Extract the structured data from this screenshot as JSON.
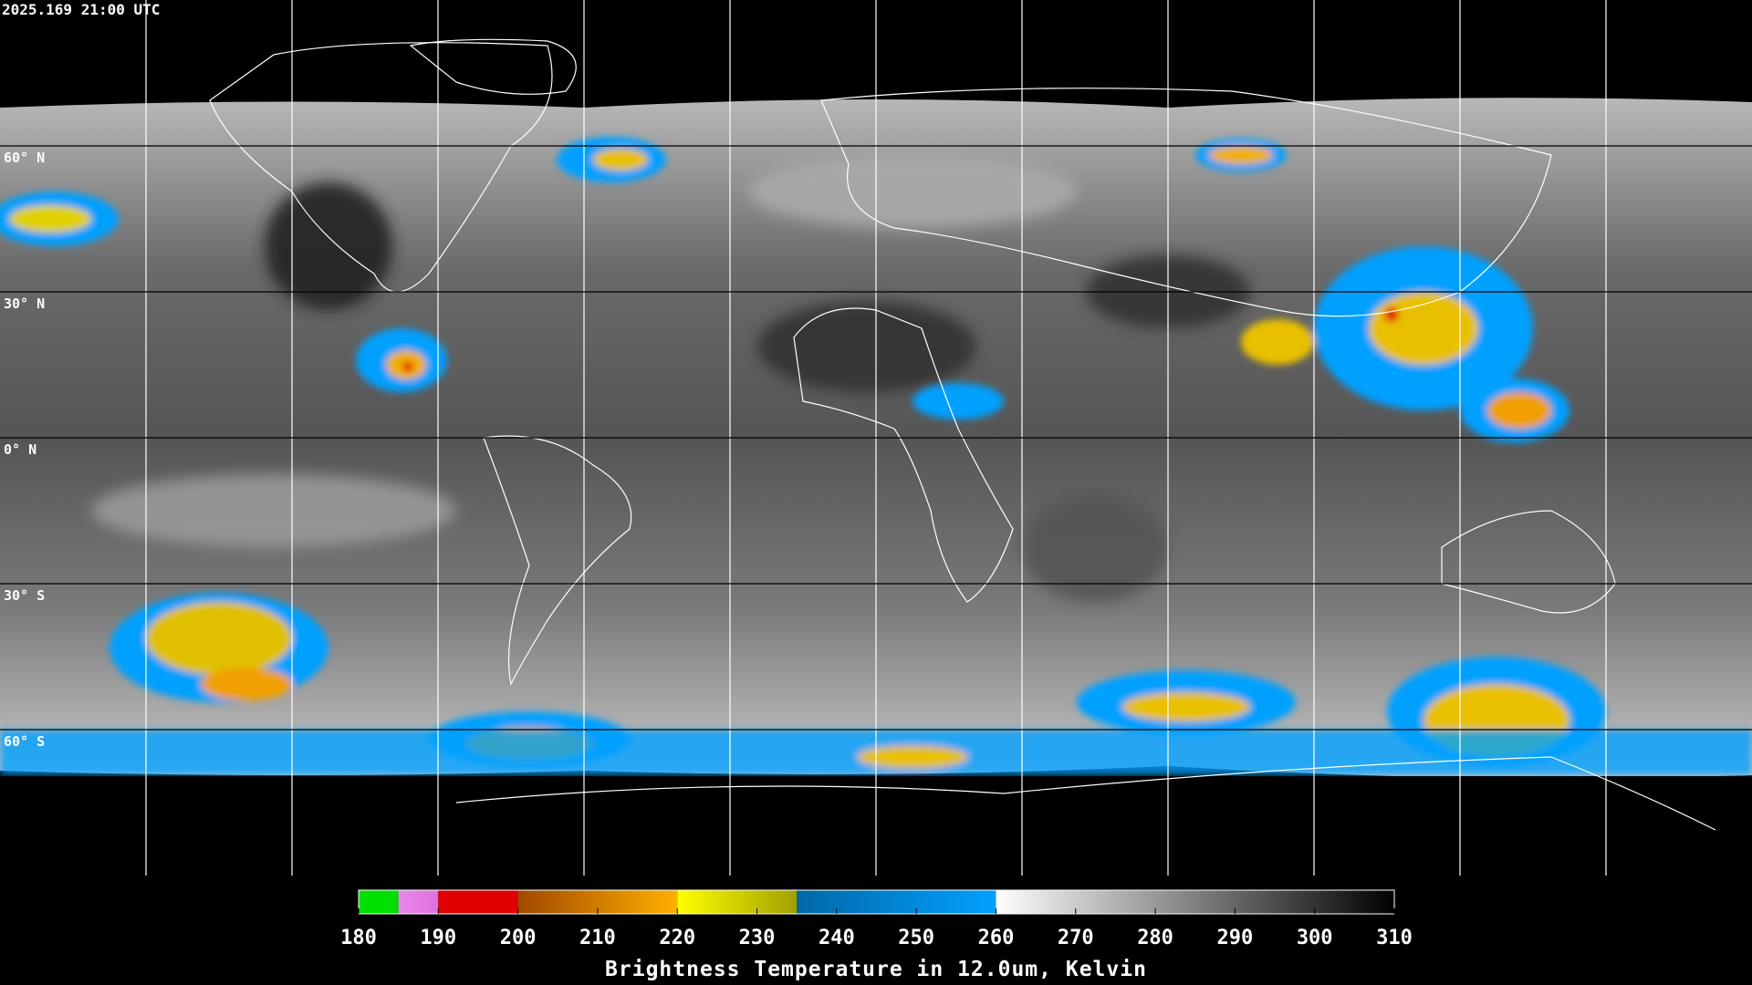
{
  "timestamp": "2025.169 21:00 UTC",
  "latitudes": [
    {
      "value": 60,
      "label": "60° N"
    },
    {
      "value": 30,
      "label": "30° N"
    },
    {
      "value": 0,
      "label": "0° N"
    },
    {
      "value": -30,
      "label": "30° S"
    },
    {
      "value": -60,
      "label": "60° S"
    }
  ],
  "colorbar": {
    "label": "Brightness Temperature in 12.0um, Kelvin",
    "range": [
      180,
      310
    ],
    "ticks": [
      180,
      190,
      200,
      210,
      220,
      230,
      240,
      250,
      260,
      270,
      280,
      290,
      300,
      310
    ],
    "segments": [
      {
        "from": 180,
        "to": 185,
        "colors": [
          "#00e000",
          "#00e000"
        ]
      },
      {
        "from": 185,
        "to": 190,
        "colors": [
          "#e888e8",
          "#e070e0"
        ]
      },
      {
        "from": 190,
        "to": 200,
        "colors": [
          "#e00000",
          "#e00000"
        ]
      },
      {
        "from": 200,
        "to": 220,
        "colors": [
          "#a04800",
          "#ffb000"
        ]
      },
      {
        "from": 220,
        "to": 235,
        "colors": [
          "#ffff00",
          "#a0a000"
        ]
      },
      {
        "from": 235,
        "to": 260,
        "colors": [
          "#0068a8",
          "#00a0ff"
        ]
      },
      {
        "from": 260,
        "to": 310,
        "colors": [
          "#ffffff",
          "#000000"
        ]
      }
    ]
  }
}
